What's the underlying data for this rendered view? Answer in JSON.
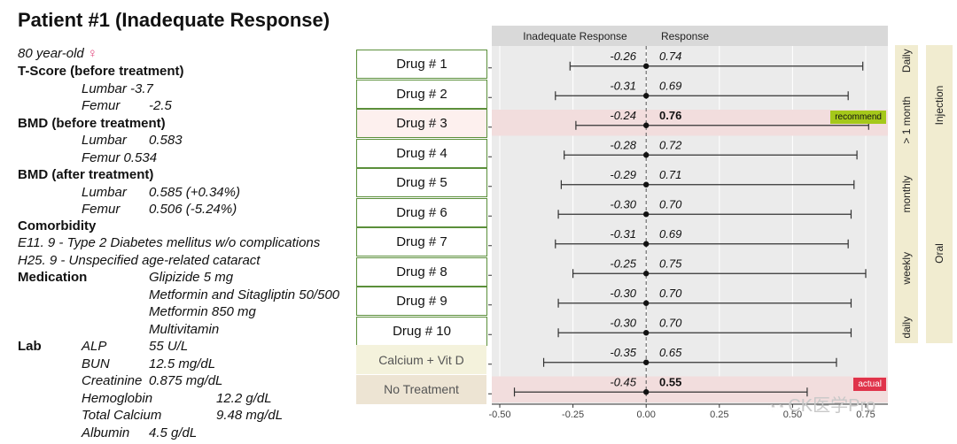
{
  "title": "Patient #1 (Inadequate Response)",
  "patient": {
    "age": "80 year-old",
    "sex_symbol": "♀",
    "tscore_header": "T-Score (before treatment)",
    "tscore_lumbar": "Lumbar -3.7",
    "tscore_femur_label": "Femur",
    "tscore_femur_value": "-2.5",
    "bmd_before_header": "BMD (before treatment)",
    "bmd_before_lumbar_label": "Lumbar",
    "bmd_before_lumbar_value": "0.583",
    "bmd_before_femur": "Femur  0.534",
    "bmd_after_header": "BMD (after treatment)",
    "bmd_after_lumbar_label": "Lumbar",
    "bmd_after_lumbar_value": "0.585 (+0.34%)",
    "bmd_after_femur_label": "Femur",
    "bmd_after_femur_value": "0.506 (-5.24%)",
    "comorbidity_header": "Comorbidity",
    "comorbidity_1": "E11. 9 - Type 2 Diabetes mellitus w/o complications",
    "comorbidity_2": "H25. 9 - Unspecified age-related cataract",
    "medication_header": "Medication",
    "medications": [
      "Glipizide 5 mg",
      "Metformin and Sitagliptin 50/500",
      "Metformin 850 mg",
      "Multivitamin"
    ],
    "lab_header": "Lab",
    "labs": [
      {
        "label": "ALP",
        "value": "55 U/L"
      },
      {
        "label": "BUN",
        "value": "12.5 mg/dL"
      },
      {
        "label": "Creatinine",
        "value": "0.875 mg/dL"
      },
      {
        "label": "Hemoglobin",
        "value": "12.2 g/dL"
      },
      {
        "label": "Total Calcium",
        "value": "9.48 mg/dL"
      },
      {
        "label": "Albumin",
        "value": "4.5 g/dL"
      }
    ]
  },
  "chart_data": {
    "type": "forest",
    "header_left": "Inadequate Response",
    "header_right": "Response",
    "xlim": [
      -0.5,
      0.75
    ],
    "xticks": [
      "-0.50",
      "-0.25",
      "0.00",
      "0.25",
      "0.50",
      "0.75"
    ],
    "xtick_values": [
      -0.5,
      -0.25,
      0,
      0.25,
      0.5,
      0.75
    ],
    "rows": [
      {
        "label": "Drug # 1",
        "left": "-0.26",
        "right": "0.74",
        "lo": -0.26,
        "hi": 0.74
      },
      {
        "label": "Drug # 2",
        "left": "-0.31",
        "right": "0.69",
        "lo": -0.31,
        "hi": 0.69
      },
      {
        "label": "Drug # 3",
        "left": "-0.24",
        "right": "0.76",
        "lo": -0.24,
        "hi": 0.76,
        "highlight": true,
        "badge": "recommend"
      },
      {
        "label": "Drug # 4",
        "left": "-0.28",
        "right": "0.72",
        "lo": -0.28,
        "hi": 0.72
      },
      {
        "label": "Drug # 5",
        "left": "-0.29",
        "right": "0.71",
        "lo": -0.29,
        "hi": 0.71
      },
      {
        "label": "Drug # 6",
        "left": "-0.30",
        "right": "0.70",
        "lo": -0.3,
        "hi": 0.7
      },
      {
        "label": "Drug # 7",
        "left": "-0.31",
        "right": "0.69",
        "lo": -0.31,
        "hi": 0.69
      },
      {
        "label": "Drug # 8",
        "left": "-0.25",
        "right": "0.75",
        "lo": -0.25,
        "hi": 0.75
      },
      {
        "label": "Drug # 9",
        "left": "-0.30",
        "right": "0.70",
        "lo": -0.3,
        "hi": 0.7
      },
      {
        "label": "Drug # 10",
        "left": "-0.30",
        "right": "0.70",
        "lo": -0.3,
        "hi": 0.7
      },
      {
        "label": "Calcium + Vit D",
        "left": "-0.35",
        "right": "0.65",
        "lo": -0.35,
        "hi": 0.65
      },
      {
        "label": "No Treatment",
        "left": "-0.45",
        "right": "0.55",
        "lo": -0.45,
        "hi": 0.55,
        "highlight": true,
        "badge": "actual"
      }
    ],
    "frequency_groups": [
      {
        "label": "Daily",
        "rows": [
          0
        ]
      },
      {
        "label": "> 1 month",
        "rows": [
          1,
          3
        ]
      },
      {
        "label": "monthly",
        "rows": [
          4,
          5
        ]
      },
      {
        "label": "weekly",
        "rows": [
          6,
          8
        ]
      },
      {
        "label": "daily",
        "rows": [
          9,
          9
        ]
      }
    ],
    "route_groups": [
      {
        "label": "Injection",
        "rows": [
          0,
          3
        ]
      },
      {
        "label": "Oral",
        "rows": [
          4,
          9
        ]
      }
    ],
    "colors": {
      "panel": "#ebebeb",
      "header": "#d9d9d9",
      "highlight": "#f2dddd",
      "calcium_bg": "#f4f2dc",
      "notreat_bg": "#ede4d3",
      "strip": "#f1ecd0",
      "badge_recommend": "#a5c81a",
      "badge_actual": "#e0334a"
    }
  },
  "watermark": {
    "icon": "wechat-icon",
    "text": "CK医学Pro"
  }
}
